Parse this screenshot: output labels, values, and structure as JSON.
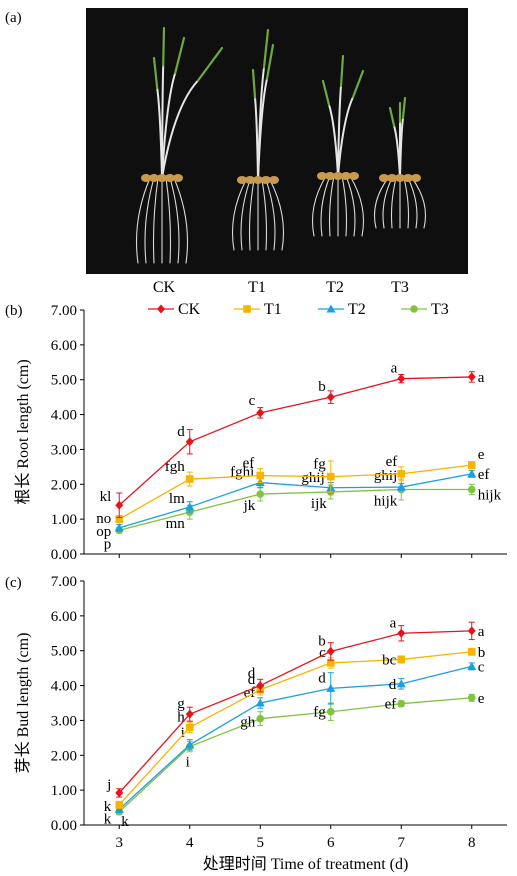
{
  "panels": {
    "a": "(a)",
    "b": "(b)",
    "c": "(c)"
  },
  "photo": {
    "groups": [
      "CK",
      "T1",
      "T2",
      "T3"
    ]
  },
  "legend": [
    "CK",
    "T1",
    "T2",
    "T3"
  ],
  "colors": {
    "CK": "#e5141b",
    "T1": "#f7b500",
    "T2": "#1aa0de",
    "T3": "#80c342"
  },
  "chart_data": [
    {
      "type": "line",
      "x": [
        3,
        4,
        5,
        6,
        7,
        8
      ],
      "xlabel": "",
      "ylabel": "根长 Root length (cm)",
      "ylim": [
        0,
        7
      ],
      "yticks": [
        "0.00",
        "1.00",
        "2.00",
        "3.00",
        "4.00",
        "5.00",
        "6.00",
        "7.00"
      ],
      "series": [
        {
          "name": "CK",
          "values": [
            1.4,
            3.22,
            4.05,
            4.5,
            5.03,
            5.08
          ],
          "errors": [
            0.35,
            0.35,
            0.15,
            0.18,
            0.12,
            0.15
          ],
          "labels": [
            "kl",
            "d",
            "c",
            "b",
            "a",
            "a"
          ]
        },
        {
          "name": "T1",
          "values": [
            1.0,
            2.15,
            2.25,
            2.22,
            2.3,
            2.55
          ],
          "errors": [
            0.1,
            0.2,
            0.2,
            0.45,
            0.2,
            0.1
          ],
          "labels": [
            "no",
            "fgh",
            "ef",
            "fg",
            "ef",
            "e"
          ]
        },
        {
          "name": "T2",
          "values": [
            0.75,
            1.35,
            2.05,
            1.9,
            1.92,
            2.3
          ],
          "errors": [
            0.1,
            0.15,
            0.15,
            0.15,
            0.1,
            0.1
          ],
          "labels": [
            "op",
            "lm",
            "fghi",
            "ghij",
            "ghij",
            "ef"
          ]
        },
        {
          "name": "T3",
          "values": [
            0.68,
            1.2,
            1.72,
            1.78,
            1.85,
            1.85
          ],
          "errors": [
            0.08,
            0.2,
            0.2,
            0.2,
            0.3,
            0.15
          ],
          "labels": [
            "p",
            "mn",
            "jk",
            "ijk",
            "hijk",
            "hijk"
          ]
        }
      ]
    },
    {
      "type": "line",
      "x": [
        3,
        4,
        5,
        6,
        7,
        8
      ],
      "xticks": [
        "3",
        "4",
        "5",
        "6",
        "7",
        "8"
      ],
      "xlabel": "处理时间 Time of treatment (d)",
      "ylabel": "芽长 Bud length (cm)",
      "ylim": [
        0,
        7
      ],
      "yticks": [
        "0.00",
        "1.00",
        "2.00",
        "3.00",
        "4.00",
        "5.00",
        "6.00",
        "7.00"
      ],
      "series": [
        {
          "name": "CK",
          "values": [
            0.92,
            3.18,
            4.0,
            4.98,
            5.5,
            5.57
          ],
          "errors": [
            0.12,
            0.2,
            0.18,
            0.25,
            0.22,
            0.25
          ],
          "labels": [
            "j",
            "g",
            "d",
            "b",
            "a",
            "a"
          ]
        },
        {
          "name": "T1",
          "values": [
            0.58,
            2.8,
            3.88,
            4.65,
            4.75,
            4.97
          ],
          "errors": [
            0.1,
            0.15,
            0.15,
            0.15,
            0.1,
            0.1
          ],
          "labels": [
            "k",
            "h",
            "d",
            "c",
            "bc",
            "b"
          ]
        },
        {
          "name": "T2",
          "values": [
            0.45,
            2.3,
            3.5,
            3.92,
            4.05,
            4.55
          ],
          "errors": [
            0.08,
            0.15,
            0.15,
            0.45,
            0.15,
            0.1
          ],
          "labels": [
            "k",
            "i",
            "ef",
            "d",
            "d",
            "c"
          ]
        },
        {
          "name": "T3",
          "values": [
            0.38,
            2.25,
            3.05,
            3.25,
            3.48,
            3.65
          ],
          "errors": [
            0.08,
            0.15,
            0.2,
            0.25,
            0.08,
            0.1
          ],
          "labels": [
            "k",
            "i",
            "gh",
            "fg",
            "ef",
            "e"
          ]
        }
      ]
    }
  ]
}
